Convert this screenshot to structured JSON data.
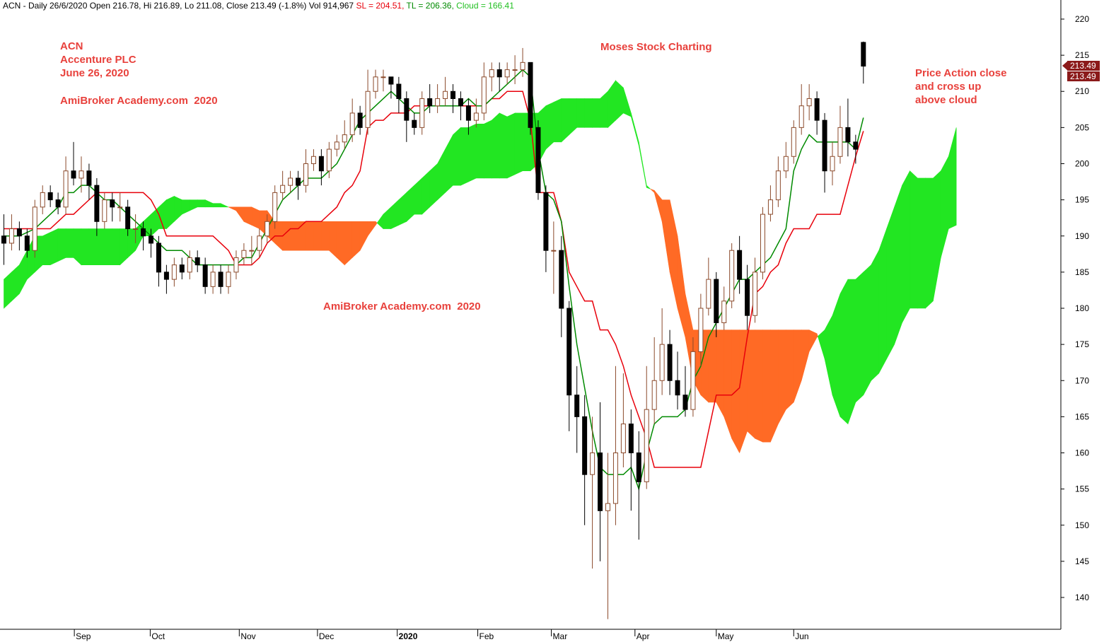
{
  "chart_data": {
    "type": "candlestick",
    "header": {
      "main": "ACN - Daily 26/6/2020 Open 216.78, Hi 216.89, Lo 211.08, Close 213.49 (-1.8%) Vol 914,967",
      "sl": "SL = 204.51,",
      "tl": "TL = 206.36,",
      "cloud": "Cloud = 166.41"
    },
    "annotations": {
      "ticker": "ACN",
      "company": "Accenture PLC",
      "date": "June 26, 2020",
      "site_top": "AmiBroker Academy.com  2020",
      "site_mid": "AmiBroker Academy.com  2020",
      "author": "Moses Stock Charting",
      "note_1": "Price Action close",
      "note_2": "and cross up",
      "note_3": "above cloud"
    },
    "last_labels": [
      "213.49",
      "213.49"
    ],
    "xlim": [
      -0.5,
      136.5
    ],
    "xticks": [
      {
        "value": 9.1,
        "label": "Sep"
      },
      {
        "value": 18.9,
        "label": "Oct"
      },
      {
        "value": 30.4,
        "label": "Nov"
      },
      {
        "value": 40.5,
        "label": "Dec"
      },
      {
        "value": 50.8,
        "label": "2020"
      },
      {
        "value": 61.2,
        "label": "Feb"
      },
      {
        "value": 70.7,
        "label": "Mar"
      },
      {
        "value": 81.5,
        "label": "Apr"
      },
      {
        "value": 92,
        "label": "May"
      },
      {
        "value": 102,
        "label": "Jun"
      }
    ],
    "ylim": [
      135.6,
      222.64
    ],
    "yticks": [
      140,
      145,
      150,
      155,
      160,
      165,
      170,
      175,
      180,
      185,
      190,
      195,
      200,
      205,
      210,
      215,
      220
    ],
    "grid": false,
    "up_color": "#ffffff",
    "up_outline": "#8b4a2b",
    "down_color": "#000000",
    "sl_color": "#e8000b",
    "tl_color": "#008a00",
    "cloud_up_color": "#22e622",
    "cloud_down_color": "#ff6a25",
    "open": [
      190,
      189,
      191,
      190,
      188,
      194,
      196,
      195,
      194,
      199,
      198,
      199,
      197,
      192,
      195,
      194,
      194,
      191,
      191,
      190,
      189,
      185,
      184,
      186,
      185,
      187,
      186,
      183,
      185,
      183,
      185,
      187,
      188,
      188,
      190,
      192,
      196,
      197,
      198,
      197,
      200,
      201,
      199,
      202,
      203,
      204,
      207,
      205,
      210,
      212,
      212,
      211,
      209,
      206,
      205,
      209,
      208,
      209,
      210,
      209,
      208,
      206,
      207,
      212,
      213,
      212,
      213,
      213,
      214,
      205,
      196,
      188,
      188,
      180,
      168,
      165,
      157,
      160,
      152,
      153,
      160,
      164,
      160,
      156,
      166,
      170,
      175,
      170,
      168,
      166,
      174,
      180,
      184,
      178,
      181,
      188,
      184,
      179,
      185,
      193,
      195,
      199,
      201,
      205,
      208,
      209,
      206,
      199,
      201,
      205,
      203,
      216.78
    ],
    "high": [
      193,
      193,
      192,
      191,
      195,
      197,
      197,
      196,
      201,
      203,
      201,
      200,
      198,
      196,
      196,
      196,
      195,
      193,
      192,
      191,
      190,
      186,
      187,
      187,
      188,
      188,
      187,
      186,
      186,
      186,
      188,
      189,
      190,
      191,
      193,
      197,
      199,
      199,
      199,
      202,
      202,
      202,
      203,
      204,
      206,
      209,
      208,
      213,
      213,
      213,
      212,
      212,
      210,
      207,
      210,
      211,
      211,
      212,
      211,
      210,
      209,
      209,
      214,
      214,
      214,
      214,
      215,
      216,
      214,
      206,
      197,
      192,
      190,
      181,
      172,
      168,
      165,
      167,
      160,
      172,
      171,
      166,
      163,
      172,
      176,
      180,
      177,
      174,
      172,
      176,
      182,
      187,
      185,
      183,
      189,
      190,
      186,
      187,
      194,
      197,
      201,
      203,
      206,
      211,
      211,
      210,
      207,
      203,
      208,
      209,
      204,
      216.89
    ],
    "low": [
      186,
      188,
      188,
      187,
      187,
      193,
      194,
      193,
      193,
      197,
      196,
      195,
      190,
      191,
      192,
      192,
      190,
      189,
      188,
      187,
      183,
      182,
      183,
      184,
      184,
      185,
      182,
      182,
      182,
      182,
      184,
      186,
      186,
      187,
      189,
      191,
      195,
      196,
      195,
      196,
      199,
      197,
      198,
      201,
      202,
      203,
      204,
      204,
      209,
      210,
      209,
      207,
      203,
      204,
      204,
      207,
      207,
      208,
      207,
      206,
      204,
      205,
      206,
      210,
      210,
      211,
      211,
      212,
      204,
      195,
      185,
      182,
      176,
      163,
      160,
      150,
      144,
      145,
      137,
      150,
      158,
      152,
      148,
      155,
      164,
      168,
      168,
      166,
      165,
      165,
      172,
      179,
      176,
      177,
      180,
      182,
      177,
      178,
      184,
      192,
      194,
      198,
      200,
      204,
      206,
      204,
      196,
      197,
      200,
      201,
      200,
      211.08
    ],
    "close": [
      189,
      191,
      190,
      188,
      194,
      196,
      195,
      194,
      199,
      198,
      199,
      197,
      192,
      195,
      194,
      194,
      191,
      191,
      190,
      189,
      185,
      184,
      186,
      185,
      187,
      186,
      183,
      185,
      183,
      185,
      187,
      188,
      188,
      190,
      192,
      196,
      197,
      198,
      197,
      200,
      201,
      199,
      202,
      203,
      204,
      207,
      205,
      210,
      212,
      212,
      211,
      209,
      206,
      205,
      209,
      208,
      209,
      210,
      209,
      208,
      206,
      207,
      212,
      213,
      212,
      213,
      213,
      214,
      205,
      196,
      188,
      188,
      180,
      168,
      165,
      157,
      160,
      152,
      153,
      160,
      164,
      160,
      156,
      166,
      170,
      175,
      170,
      168,
      166,
      174,
      180,
      184,
      178,
      181,
      188,
      184,
      179,
      185,
      193,
      195,
      199,
      201,
      205,
      208,
      209,
      206,
      199,
      201,
      205,
      203,
      202,
      213.49
    ],
    "sl": [
      191,
      191,
      191,
      191,
      191,
      191,
      191,
      192,
      193,
      193,
      194,
      195,
      196,
      196,
      196,
      196,
      196,
      196,
      196,
      195,
      193,
      190,
      190,
      190,
      190,
      190,
      190,
      190,
      189,
      188,
      186,
      186,
      186,
      187,
      189,
      190,
      190,
      191,
      191,
      192,
      192,
      192,
      193,
      194,
      196,
      197,
      199,
      205,
      206,
      206,
      207,
      207,
      207,
      208,
      208,
      208,
      208,
      208,
      208,
      208,
      208,
      208,
      208,
      209,
      209,
      210,
      210,
      210,
      206,
      196,
      196,
      196,
      192,
      185,
      183,
      181,
      181,
      177,
      177,
      175,
      172,
      168,
      165,
      162,
      158,
      158,
      158,
      158,
      158,
      158,
      158,
      163,
      168,
      168,
      168,
      169,
      176,
      182,
      183,
      185,
      186,
      189,
      191,
      191,
      191,
      193,
      193,
      193,
      193,
      197,
      201,
      204.51
    ],
    "tl": [
      190,
      190,
      190,
      190.5,
      191,
      192,
      193,
      194,
      196,
      196,
      197,
      197,
      196,
      195,
      195,
      194,
      193,
      192,
      191,
      190,
      189,
      188,
      188,
      188,
      187,
      186,
      186,
      186,
      186,
      186,
      186,
      187,
      187,
      189,
      191,
      193,
      195,
      196,
      197,
      198,
      198,
      198,
      199,
      200,
      202,
      204,
      206,
      207,
      208,
      209,
      210,
      209,
      208,
      207,
      207,
      208,
      208,
      208,
      208,
      208,
      209,
      208,
      208,
      209,
      210,
      211,
      212,
      213,
      212,
      202,
      196,
      195,
      192,
      183,
      175,
      169,
      163,
      158,
      157,
      157,
      157,
      158,
      155,
      160,
      164,
      165,
      165,
      165,
      166,
      170,
      172,
      176,
      178,
      180,
      182,
      184,
      184,
      185,
      186,
      187,
      189,
      191,
      199,
      202,
      204,
      203,
      203,
      203,
      203,
      203,
      202,
      206.36
    ],
    "span_a": [
      184,
      185,
      186,
      188,
      190,
      190,
      190.5,
      191,
      191,
      191,
      191,
      191,
      191,
      191,
      191,
      191,
      191,
      191,
      192,
      193,
      194,
      195,
      195.5,
      195,
      195,
      195,
      195,
      194.5,
      194.5,
      194,
      193.5,
      192,
      191.5,
      191,
      190,
      189,
      188,
      188,
      188,
      188,
      188,
      188,
      188,
      187,
      186,
      187,
      188,
      190,
      191.5,
      193,
      194,
      195,
      196,
      197,
      198,
      199,
      200,
      202,
      204,
      205,
      205,
      205.5,
      205.5,
      206,
      207,
      206.5,
      207,
      207,
      207,
      207,
      208,
      208.5,
      209,
      209,
      209,
      209,
      209,
      209,
      210,
      211.5,
      210.5,
      207,
      203,
      197,
      196,
      192,
      185,
      180,
      176,
      170,
      168,
      167,
      167,
      165,
      162,
      160,
      163,
      162,
      161.5,
      161.5,
      164,
      166,
      167,
      170,
      174,
      176,
      177,
      179,
      182,
      184,
      184,
      185,
      186,
      188,
      191,
      194,
      197,
      199,
      198,
      198,
      198,
      199,
      201,
      205
    ],
    "span_b": [
      180,
      181,
      182,
      184,
      185,
      186,
      186,
      186.5,
      187,
      187,
      186,
      186,
      186,
      186,
      186,
      186,
      187,
      188,
      190,
      190,
      191,
      191,
      192,
      193,
      193.5,
      194,
      194,
      194,
      194,
      194,
      194,
      194,
      194,
      193.5,
      193.5,
      192,
      192,
      192,
      192,
      192,
      192,
      192,
      192,
      192,
      192,
      192,
      192,
      192,
      192,
      191,
      191,
      191.5,
      192,
      193,
      193,
      194,
      195,
      196,
      197,
      197,
      197.5,
      198,
      198,
      198,
      198,
      198,
      198.5,
      199,
      199,
      200,
      202,
      203,
      203,
      204,
      205,
      205,
      205,
      205,
      205,
      206,
      207,
      206.5,
      202.5,
      196.7,
      196.3,
      195,
      195,
      190,
      182,
      177,
      177,
      177,
      177,
      177,
      177,
      177,
      177,
      177,
      177,
      177,
      177,
      177,
      177,
      177,
      177,
      176.5,
      173,
      168,
      165,
      164,
      167,
      168,
      170,
      171,
      173,
      175,
      178,
      180,
      180,
      180,
      181,
      187,
      191,
      191.5
    ]
  }
}
